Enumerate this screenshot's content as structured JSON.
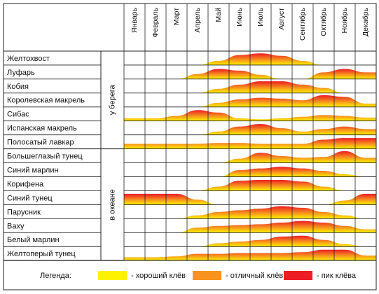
{
  "chart_data": {
    "type": "area",
    "months": [
      "Январь",
      "Февраль",
      "Март",
      "Апрель",
      "Май",
      "Июнь",
      "Июль",
      "Август",
      "Сентябрь",
      "Октябрь",
      "Ноябрь",
      "Декабрь"
    ],
    "levels": {
      "1": "хороший клёв",
      "2": "отличный клёв",
      "3": "пик клёва"
    },
    "colors": {
      "good": "#FFF200",
      "excellent": "#F7931E",
      "peak": "#ED1C24"
    },
    "groups": [
      {
        "label": "у берега",
        "fish": [
          {
            "name": "Желтохвост",
            "profile": [
              0,
              0,
              0,
              0,
              0.5,
              1.2,
              1.4,
              1.1,
              0.5,
              0,
              0,
              0
            ]
          },
          {
            "name": "Луфарь",
            "profile": [
              0,
              0,
              0,
              0.6,
              1.2,
              1.0,
              0.5,
              0,
              0,
              0.8,
              1.2,
              0.8
            ]
          },
          {
            "name": "Кобия",
            "profile": [
              0,
              0,
              0,
              0,
              0.5,
              1.0,
              1.4,
              1.4,
              1.0,
              0.6,
              0,
              0
            ]
          },
          {
            "name": "Королевская макрель",
            "profile": [
              0,
              0,
              0,
              0,
              0.5,
              0.9,
              1.1,
              1.0,
              0.8,
              1.4,
              1.2,
              0.4
            ]
          },
          {
            "name": "Сибас",
            "profile": [
              0.3,
              0.3,
              0.6,
              1.3,
              1.0,
              0.3,
              0.2,
              0.3,
              0.5,
              0.7,
              0.6,
              0.4
            ]
          },
          {
            "name": "Испанская макрель",
            "profile": [
              0,
              0,
              0,
              0,
              0.4,
              1.0,
              1.3,
              0.8,
              0.4,
              0.7,
              1.0,
              0.7
            ]
          },
          {
            "name": "Полосатый лавкар",
            "profile": [
              0.6,
              0.6,
              0.6,
              0.6,
              0.7,
              0.7,
              0.6,
              0.6,
              0.6,
              1.1,
              1.3,
              1.3
            ]
          }
        ]
      },
      {
        "label": "в океане",
        "fish": [
          {
            "name": "Большеглазый тунец",
            "profile": [
              0,
              0,
              0,
              0,
              0,
              0.5,
              1.2,
              0.8,
              0.6,
              0.7,
              1.4,
              0.6
            ]
          },
          {
            "name": "Синий марлин",
            "profile": [
              0,
              0,
              0,
              0,
              0,
              0.8,
              1.0,
              1.2,
              1.0,
              0.7,
              0.3,
              0
            ]
          },
          {
            "name": "Корифена",
            "profile": [
              0,
              0,
              0,
              0,
              0.5,
              1.2,
              1.3,
              1.3,
              1.1,
              0.5,
              0,
              0
            ]
          },
          {
            "name": "Синий тунец",
            "profile": [
              1.3,
              1.3,
              1.3,
              0.6,
              0,
              0,
              0,
              0,
              0,
              0,
              0.5,
              1.3
            ]
          },
          {
            "name": "Парусник",
            "profile": [
              0,
              0,
              0,
              0.4,
              0.8,
              1.0,
              1.2,
              1.5,
              1.3,
              0.8,
              0.4,
              0
            ]
          },
          {
            "name": "Ваху",
            "profile": [
              0,
              0,
              0,
              0.6,
              0.8,
              0.9,
              1.0,
              1.2,
              1.4,
              1.2,
              0.8,
              0.4
            ]
          },
          {
            "name": "Белый марлин",
            "profile": [
              0,
              0,
              0,
              0,
              0.4,
              0.6,
              0.8,
              1.2,
              1.3,
              0.8,
              0.3,
              0
            ]
          },
          {
            "name": "Желтоперый тунец",
            "profile": [
              0.4,
              0.4,
              0.5,
              0.8,
              0.8,
              0.9,
              0.9,
              0.9,
              1.0,
              1.3,
              1.3,
              0.6
            ]
          }
        ]
      }
    ],
    "legend": {
      "title": "Легенда:",
      "items": [
        {
          "key": "good",
          "label": "- хороший клёв"
        },
        {
          "key": "excellent",
          "label": "- отличный клёв"
        },
        {
          "key": "peak",
          "label": "- пик клёва"
        }
      ]
    }
  }
}
